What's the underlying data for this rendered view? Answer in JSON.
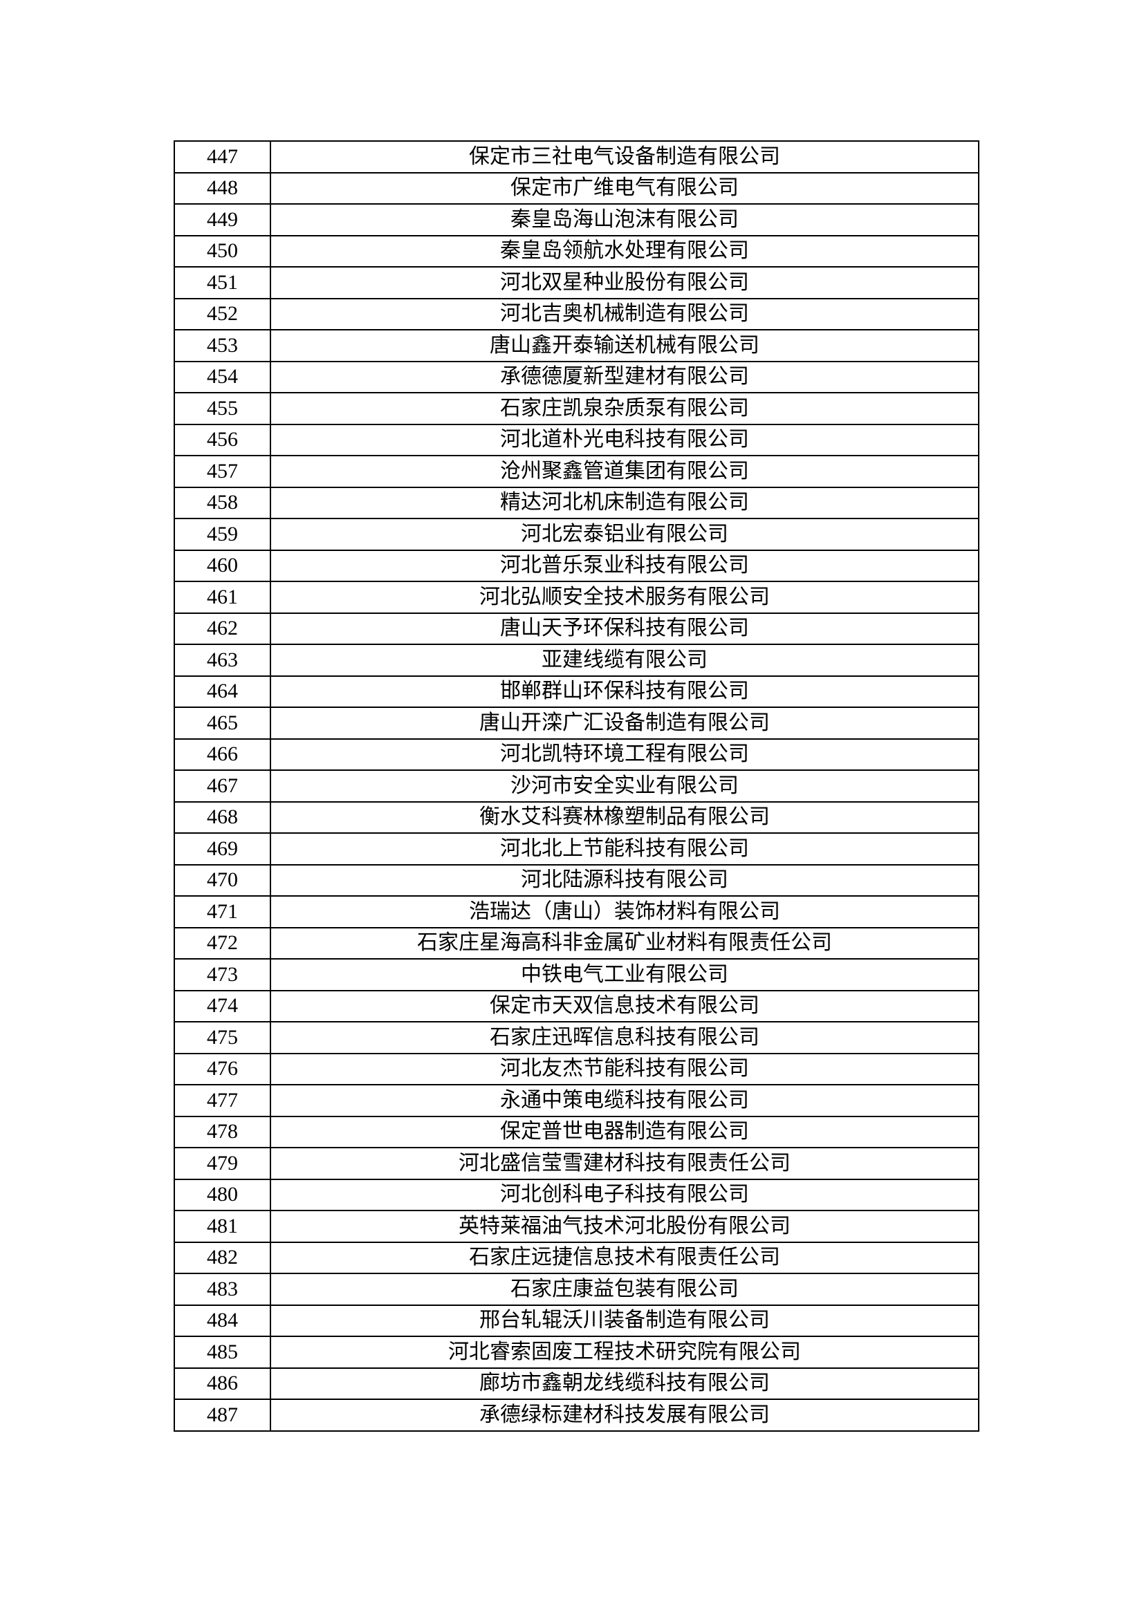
{
  "rows": [
    {
      "no": "447",
      "name": "保定市三社电气设备制造有限公司"
    },
    {
      "no": "448",
      "name": "保定市广维电气有限公司"
    },
    {
      "no": "449",
      "name": "秦皇岛海山泡沫有限公司"
    },
    {
      "no": "450",
      "name": "秦皇岛领航水处理有限公司"
    },
    {
      "no": "451",
      "name": "河北双星种业股份有限公司"
    },
    {
      "no": "452",
      "name": "河北吉奥机械制造有限公司"
    },
    {
      "no": "453",
      "name": "唐山鑫开泰输送机械有限公司"
    },
    {
      "no": "454",
      "name": "承德德厦新型建材有限公司"
    },
    {
      "no": "455",
      "name": "石家庄凯泉杂质泵有限公司"
    },
    {
      "no": "456",
      "name": "河北道朴光电科技有限公司"
    },
    {
      "no": "457",
      "name": "沧州聚鑫管道集团有限公司"
    },
    {
      "no": "458",
      "name": "精达河北机床制造有限公司"
    },
    {
      "no": "459",
      "name": "河北宏泰铝业有限公司"
    },
    {
      "no": "460",
      "name": "河北普乐泵业科技有限公司"
    },
    {
      "no": "461",
      "name": "河北弘顺安全技术服务有限公司"
    },
    {
      "no": "462",
      "name": "唐山天予环保科技有限公司"
    },
    {
      "no": "463",
      "name": "亚建线缆有限公司"
    },
    {
      "no": "464",
      "name": "邯郸群山环保科技有限公司"
    },
    {
      "no": "465",
      "name": "唐山开滦广汇设备制造有限公司"
    },
    {
      "no": "466",
      "name": "河北凯特环境工程有限公司"
    },
    {
      "no": "467",
      "name": "沙河市安全实业有限公司"
    },
    {
      "no": "468",
      "name": "衡水艾科赛林橡塑制品有限公司"
    },
    {
      "no": "469",
      "name": "河北北上节能科技有限公司"
    },
    {
      "no": "470",
      "name": "河北陆源科技有限公司"
    },
    {
      "no": "471",
      "name": "浩瑞达（唐山）装饰材料有限公司"
    },
    {
      "no": "472",
      "name": "石家庄星海高科非金属矿业材料有限责任公司"
    },
    {
      "no": "473",
      "name": "中铁电气工业有限公司"
    },
    {
      "no": "474",
      "name": "保定市天双信息技术有限公司"
    },
    {
      "no": "475",
      "name": "石家庄迅晖信息科技有限公司"
    },
    {
      "no": "476",
      "name": "河北友杰节能科技有限公司"
    },
    {
      "no": "477",
      "name": "永通中策电缆科技有限公司"
    },
    {
      "no": "478",
      "name": "保定普世电器制造有限公司"
    },
    {
      "no": "479",
      "name": "河北盛信莹雪建材科技有限责任公司"
    },
    {
      "no": "480",
      "name": "河北创科电子科技有限公司"
    },
    {
      "no": "481",
      "name": "英特莱福油气技术河北股份有限公司"
    },
    {
      "no": "482",
      "name": "石家庄远捷信息技术有限责任公司"
    },
    {
      "no": "483",
      "name": "石家庄康益包装有限公司"
    },
    {
      "no": "484",
      "name": "邢台轧辊沃川装备制造有限公司"
    },
    {
      "no": "485",
      "name": "河北睿索固废工程技术研究院有限公司"
    },
    {
      "no": "486",
      "name": "廊坊市鑫朝龙线缆科技有限公司"
    },
    {
      "no": "487",
      "name": "承德绿标建材科技发展有限公司"
    }
  ]
}
